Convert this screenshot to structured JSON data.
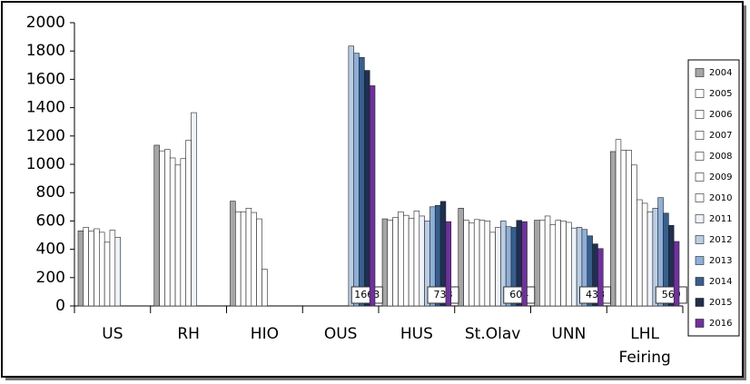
{
  "chart_data": {
    "type": "bar",
    "categories": [
      "US",
      "RH",
      "HIO",
      "OUS",
      "HUS",
      "St.Olav",
      "UNN",
      "LHL Feiring"
    ],
    "series": [
      {
        "name": "2004",
        "color": "#a6a6a6",
        "values": [
          530,
          1135,
          740,
          null,
          615,
          690,
          605,
          1090
        ]
      },
      {
        "name": "2005",
        "color": "#ffffff",
        "values": [
          555,
          1095,
          665,
          null,
          605,
          605,
          605,
          1175
        ]
      },
      {
        "name": "2006",
        "color": "#ffffff",
        "values": [
          530,
          1105,
          665,
          null,
          625,
          585,
          635,
          1100
        ]
      },
      {
        "name": "2007",
        "color": "#ffffff",
        "values": [
          545,
          1045,
          690,
          null,
          665,
          610,
          575,
          1100
        ]
      },
      {
        "name": "2008",
        "color": "#ffffff",
        "values": [
          520,
          995,
          660,
          null,
          640,
          605,
          605,
          995
        ]
      },
      {
        "name": "2009",
        "color": "#ffffff",
        "values": [
          450,
          1040,
          615,
          null,
          620,
          600,
          600,
          750
        ]
      },
      {
        "name": "2010",
        "color": "#ffffff",
        "values": [
          535,
          1170,
          260,
          null,
          670,
          520,
          590,
          725
        ]
      },
      {
        "name": "2011",
        "color": "#eef3fa",
        "values": [
          485,
          1365,
          null,
          null,
          635,
          555,
          550,
          665
        ]
      },
      {
        "name": "2012",
        "color": "#b9cde5",
        "values": [
          null,
          null,
          null,
          1835,
          600,
          600,
          555,
          690
        ]
      },
      {
        "name": "2013",
        "color": "#8eb0d8",
        "values": [
          null,
          null,
          null,
          1785,
          700,
          560,
          540,
          765
        ]
      },
      {
        "name": "2014",
        "color": "#365f91",
        "values": [
          null,
          null,
          null,
          1755,
          710,
          555,
          495,
          655
        ]
      },
      {
        "name": "2015",
        "color": "#1f2f4f",
        "values": [
          null,
          null,
          null,
          1663,
          738,
          604,
          438,
          569
        ],
        "labels": true
      },
      {
        "name": "2016",
        "color": "#7030a0",
        "values": [
          null,
          null,
          null,
          1555,
          595,
          595,
          405,
          455
        ]
      }
    ],
    "ylim": [
      0,
      2000
    ],
    "yticks": [
      0,
      200,
      400,
      600,
      800,
      1000,
      1200,
      1400,
      1600,
      1800,
      2000
    ],
    "grid": false,
    "legend": "right"
  }
}
